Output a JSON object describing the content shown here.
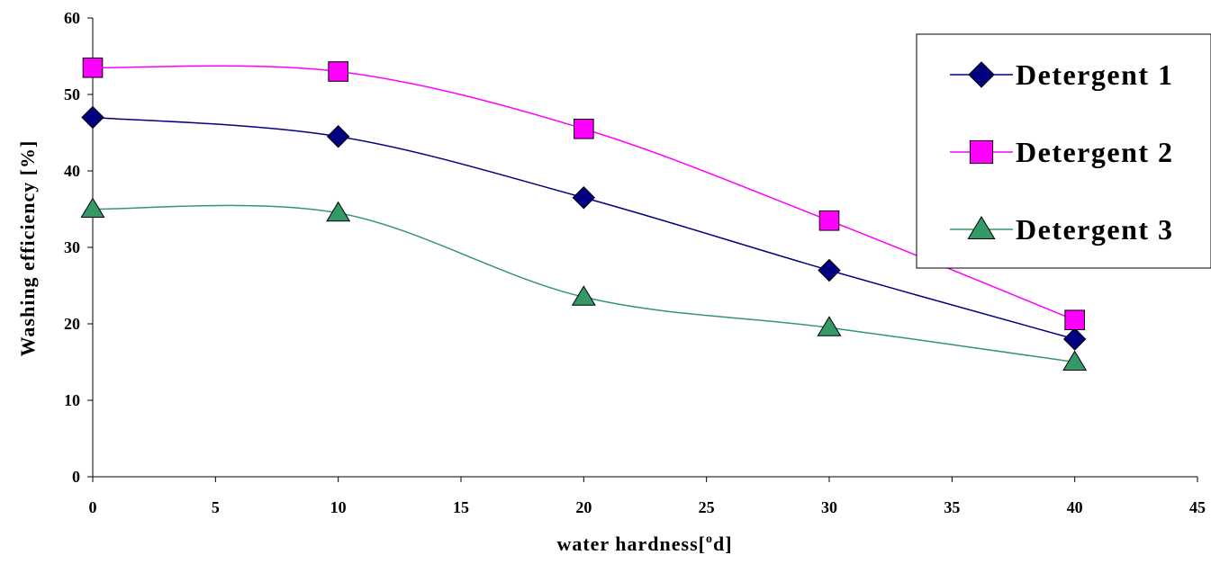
{
  "chart_data": {
    "type": "line",
    "xlabel": "water hardness[",
    "xlabel_sup": "o",
    "xlabel_end": "d]",
    "ylabel": "Washing efficiency [%]",
    "xlim": [
      0,
      45
    ],
    "ylim": [
      0,
      60
    ],
    "x_ticks": [
      "0",
      "5",
      "10",
      "15",
      "20",
      "25",
      "30",
      "35",
      "40",
      "45"
    ],
    "y_ticks": [
      "0",
      "10",
      "20",
      "30",
      "40",
      "50",
      "60"
    ],
    "grid": false,
    "smoothed": true,
    "legend_position": "top-right",
    "x": [
      0,
      10,
      20,
      30,
      40
    ],
    "series": [
      {
        "name": "Detergent 1",
        "values": [
          47,
          44.5,
          36.5,
          27,
          18
        ],
        "color": "#000080",
        "marker": "diamond"
      },
      {
        "name": "Detergent 2",
        "values": [
          53.5,
          53,
          45.5,
          33.5,
          20.5
        ],
        "color": "#FF00FF",
        "marker": "square"
      },
      {
        "name": "Detergent 3",
        "values": [
          35,
          34.5,
          23.5,
          19.5,
          15
        ],
        "color": "#339966",
        "marker": "triangle"
      }
    ]
  }
}
